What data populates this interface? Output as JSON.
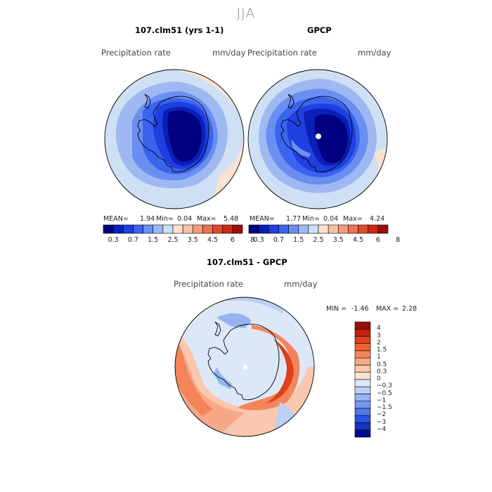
{
  "figure": {
    "season": "JJA"
  },
  "panels": [
    {
      "id": "model",
      "title": "107.clm51 (yrs 1-1)",
      "variable": "Precipitation rate",
      "units": "mm/day",
      "stats": {
        "mean_label": "MEAN=",
        "mean": "1.94",
        "min_label": "Min=",
        "min": "0.04",
        "max_label": "Max=",
        "max": "5.48"
      }
    },
    {
      "id": "obs",
      "title": "GPCP",
      "variable": "Precipitation rate",
      "units": "mm/day",
      "stats": {
        "mean_label": "MEAN=",
        "mean": "1.77",
        "min_label": "Min=",
        "min": "0.04",
        "max_label": "Max=",
        "max": "4.24"
      }
    },
    {
      "id": "diff",
      "title": "107.clm51 - GPCP",
      "variable": "Precipitation rate",
      "units": "mm/day",
      "stats": {
        "min_label": "MIN =",
        "min": "-1.46",
        "max_label": "MAX =",
        "max": "2.28"
      }
    }
  ],
  "colorbar_abs": {
    "tick_labels": [
      "0.3",
      "0.7",
      "1.5",
      "2.5",
      "3.5",
      "4.5",
      "6",
      "8"
    ],
    "colors": [
      "#000080",
      "#0a1fb8",
      "#1f3fe0",
      "#3a64ee",
      "#6a8ff2",
      "#9eb9f2",
      "#cfe0f5",
      "#fce2d0",
      "#f8c0a6",
      "#f49a7c",
      "#ee7152",
      "#e24a2a",
      "#c92a12",
      "#9c0d08"
    ]
  },
  "colorbar_diff": {
    "tick_labels": [
      "4",
      "3",
      "2",
      "1.5",
      "1",
      "0.5",
      "0.3",
      "0",
      "−0.3",
      "−0.5",
      "−1",
      "−1.5",
      "−2",
      "−3",
      "−4"
    ],
    "colors": [
      "#9c0d08",
      "#c2200e",
      "#e0401c",
      "#f2612f",
      "#f5845a",
      "#f7a886",
      "#f9c8ae",
      "#fde3d3",
      "#dce8f7",
      "#bcd0f3",
      "#96b3f0",
      "#7396ee",
      "#4f76ea",
      "#2d54e0",
      "#1236c2",
      "#000a8c"
    ]
  }
}
